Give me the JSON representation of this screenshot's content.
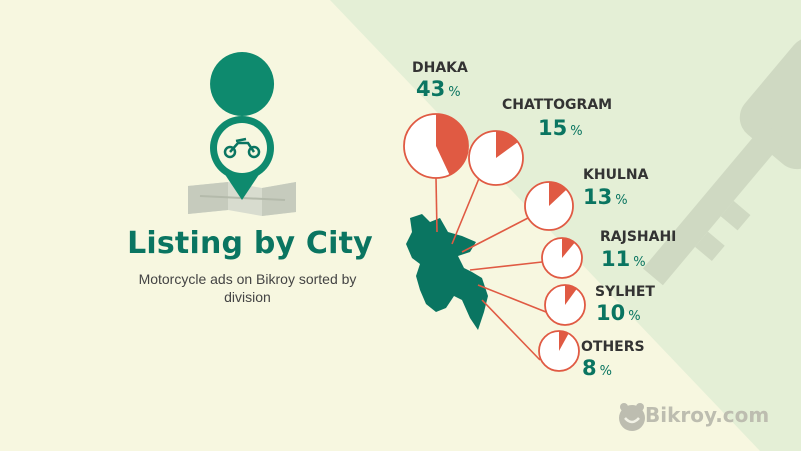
{
  "title": "Listing by City",
  "subtitle": "Motorcycle ads on Bikroy sorted by division",
  "brand": "Bikroy.com",
  "icons": {
    "marker": "map-pin-icon",
    "vehicle": "motorcycle-icon",
    "map": "folded-map-icon",
    "key": "key-icon",
    "brand": "bikroy-logo-icon",
    "country": "bangladesh-map-icon"
  },
  "colors": {
    "accent": "#0a7561",
    "slice": "#e05a43",
    "background": "#f7f7e0",
    "panel": "#e4efd6"
  },
  "chart_data": {
    "type": "pie",
    "categories": [
      "DHAKA",
      "CHATTOGRAM",
      "KHULNA",
      "RAJSHAHI",
      "SYLHET",
      "OTHERS"
    ],
    "values": [
      43,
      15,
      13,
      11,
      10,
      8
    ],
    "unit": "%",
    "title": "Listing by City"
  }
}
